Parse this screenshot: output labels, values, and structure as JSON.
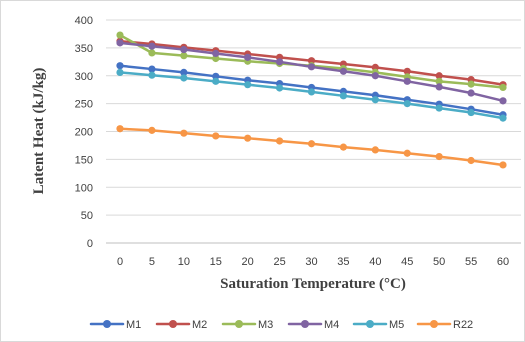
{
  "chart_data": {
    "type": "line",
    "title": "",
    "xlabel": "Saturation Temperature (°C)",
    "ylabel": "Latent Heat (kJ/kg)",
    "x": [
      0,
      5,
      10,
      15,
      20,
      25,
      30,
      35,
      40,
      45,
      50,
      55,
      60
    ],
    "x_tick_labels": [
      "0",
      "5",
      "10",
      "15",
      "20",
      "25",
      "30",
      "35",
      "40",
      "45",
      "50",
      "55",
      "60"
    ],
    "y_ticks": [
      0,
      50,
      100,
      150,
      200,
      250,
      300,
      350,
      400
    ],
    "ylim": [
      0,
      400
    ],
    "grid": true,
    "legend_position": "bottom",
    "series": [
      {
        "name": "M1",
        "color": "#4472c4",
        "values": [
          318,
          312,
          306,
          299,
          292,
          286,
          279,
          272,
          265,
          257,
          249,
          240,
          230
        ]
      },
      {
        "name": "M2",
        "color": "#c0504d",
        "values": [
          362,
          357,
          351,
          345,
          339,
          333,
          327,
          321,
          315,
          308,
          300,
          293,
          284
        ]
      },
      {
        "name": "M3",
        "color": "#9bbb59",
        "values": [
          373,
          341,
          336,
          331,
          326,
          322,
          318,
          313,
          306,
          298,
          290,
          285,
          279
        ]
      },
      {
        "name": "M4",
        "color": "#8064a2",
        "values": [
          359,
          353,
          347,
          340,
          333,
          325,
          316,
          308,
          300,
          290,
          280,
          269,
          255
        ]
      },
      {
        "name": "M5",
        "color": "#4bacc6",
        "values": [
          306,
          301,
          296,
          290,
          284,
          278,
          271,
          264,
          257,
          250,
          242,
          234,
          224
        ]
      },
      {
        "name": "R22",
        "color": "#f79646",
        "values": [
          205,
          202,
          197,
          192,
          188,
          183,
          178,
          172,
          167,
          161,
          155,
          148,
          140
        ]
      }
    ]
  }
}
